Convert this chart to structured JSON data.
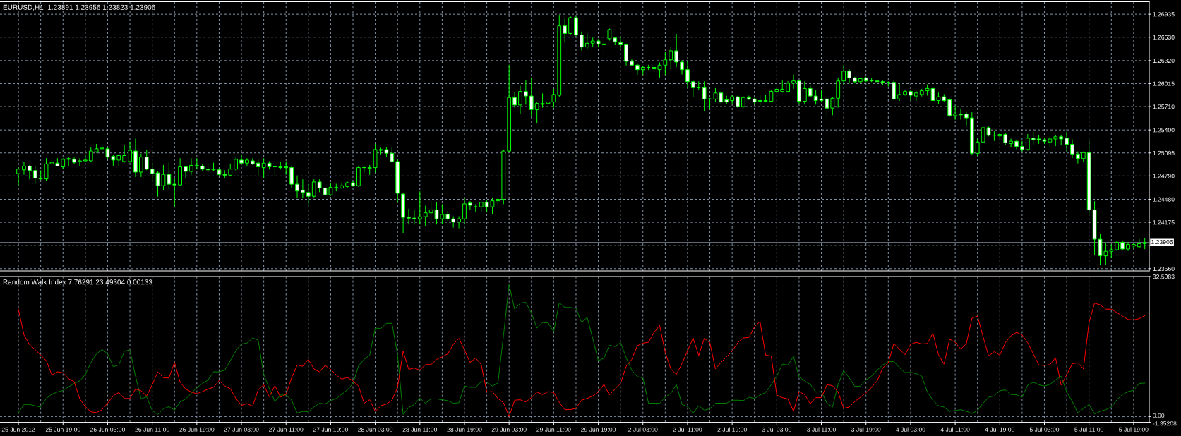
{
  "chart_data": [
    {
      "type": "candlestick",
      "title": "EURUSD,H1  1.23891 1.23956 1.23823 1.23906",
      "categories": [
        null,
        null,
        null,
        null,
        null,
        null,
        null,
        null,
        null,
        null,
        null,
        null,
        null,
        null,
        null,
        null,
        null,
        null,
        null,
        null,
        null,
        null,
        null,
        null,
        null,
        null,
        null,
        null,
        null,
        null,
        null,
        null,
        null,
        null,
        null,
        null,
        null,
        null,
        null,
        null,
        null,
        null,
        null,
        null,
        null,
        null,
        null,
        null,
        null,
        null,
        null,
        null,
        null,
        null,
        null,
        null,
        null,
        null,
        null,
        null,
        null,
        null,
        null,
        null,
        null,
        null,
        null,
        null,
        null,
        null,
        null,
        null,
        null,
        null,
        null,
        null,
        null,
        null,
        null,
        null,
        null,
        null,
        null,
        null,
        null,
        null,
        null,
        null,
        null,
        null,
        null,
        null,
        null,
        null,
        null,
        null,
        null,
        null,
        null,
        null,
        null,
        null,
        null,
        null,
        null,
        null,
        null,
        null,
        null,
        null,
        null,
        null,
        null,
        null,
        null,
        null,
        null,
        null,
        null,
        null,
        null,
        null,
        null,
        null,
        null,
        null,
        null,
        null,
        null,
        null,
        null,
        null,
        null,
        null,
        null,
        null,
        null,
        null,
        null,
        null,
        null,
        null,
        null,
        null,
        null,
        null,
        null,
        null,
        null,
        null,
        null,
        null,
        null,
        null,
        null,
        null,
        null,
        null,
        null,
        null,
        null,
        null,
        null,
        null,
        null,
        null,
        null,
        null,
        null,
        null,
        null,
        null,
        null,
        null,
        null,
        null,
        null,
        null,
        null,
        null,
        null,
        null,
        null,
        null,
        null,
        null,
        null,
        null,
        null,
        null,
        null,
        null,
        null,
        null,
        null,
        null,
        null,
        null,
        null,
        null,
        null,
        null,
        null
      ],
      "ohlc": [
        [
          1.2482,
          1.249,
          1.2467,
          1.2488
        ],
        [
          1.2487,
          1.2497,
          1.2481,
          1.2492
        ],
        [
          1.2492,
          1.2493,
          1.2475,
          1.2486
        ],
        [
          1.2486,
          1.2492,
          1.2469,
          1.2476
        ],
        [
          1.2476,
          1.2486,
          1.2474,
          1.2475
        ],
        [
          1.2475,
          1.2502,
          1.2473,
          1.2495
        ],
        [
          1.2495,
          1.2503,
          1.2492,
          1.2497
        ],
        [
          1.2496,
          1.2502,
          1.2492,
          1.2492
        ],
        [
          1.2491,
          1.2502,
          1.2489,
          1.2501
        ],
        [
          1.2501,
          1.2504,
          1.2492,
          1.2502
        ],
        [
          1.2501,
          1.2503,
          1.2495,
          1.2497
        ],
        [
          1.2498,
          1.2502,
          1.2493,
          1.2499
        ],
        [
          1.2499,
          1.2507,
          1.2498,
          1.25
        ],
        [
          1.2499,
          1.2517,
          1.2498,
          1.2512
        ],
        [
          1.2511,
          1.2521,
          1.251,
          1.2515
        ],
        [
          1.2515,
          1.2521,
          1.2512,
          1.2516
        ],
        [
          1.2515,
          1.2516,
          1.2502,
          1.2504
        ],
        [
          1.2505,
          1.2507,
          1.2493,
          1.25
        ],
        [
          1.25,
          1.2507,
          1.2492,
          1.2506
        ],
        [
          1.2498,
          1.252,
          1.2497,
          1.2506
        ],
        [
          1.2498,
          1.2524,
          1.2497,
          1.2513
        ],
        [
          1.2512,
          1.2528,
          1.2478,
          1.2484
        ],
        [
          1.2484,
          1.2508,
          1.2478,
          1.2504
        ],
        [
          1.2504,
          1.2513,
          1.2487,
          1.2488
        ],
        [
          1.2488,
          1.2497,
          1.2472,
          1.2482
        ],
        [
          1.2483,
          1.2485,
          1.2452,
          1.2466
        ],
        [
          1.2466,
          1.2493,
          1.2461,
          1.2481
        ],
        [
          1.2481,
          1.2497,
          1.2461,
          1.2468
        ],
        [
          1.2468,
          1.2476,
          1.2438,
          1.2467
        ],
        [
          1.2467,
          1.2502,
          1.2466,
          1.2491
        ],
        [
          1.2491,
          1.2492,
          1.2477,
          1.2485
        ],
        [
          1.2485,
          1.2502,
          1.2481,
          1.2493
        ],
        [
          1.2492,
          1.2502,
          1.2488,
          1.2493
        ],
        [
          1.2492,
          1.2494,
          1.2486,
          1.2488
        ],
        [
          1.2488,
          1.2494,
          1.2485,
          1.2487
        ],
        [
          1.2487,
          1.2496,
          1.2486,
          1.2488
        ],
        [
          1.2487,
          1.2488,
          1.248,
          1.2481
        ],
        [
          1.2481,
          1.2486,
          1.2476,
          1.248
        ],
        [
          1.248,
          1.2495,
          1.2479,
          1.2488
        ],
        [
          1.2488,
          1.2503,
          1.2486,
          1.2501
        ],
        [
          1.25,
          1.2507,
          1.2495,
          1.2496
        ],
        [
          1.2496,
          1.2502,
          1.2492,
          1.25
        ],
        [
          1.2499,
          1.2502,
          1.2494,
          1.2495
        ],
        [
          1.2496,
          1.25,
          1.2481,
          1.2491
        ],
        [
          1.249,
          1.2502,
          1.2477,
          1.2496
        ],
        [
          1.2496,
          1.2498,
          1.2488,
          1.2491
        ],
        [
          1.2491,
          1.2492,
          1.2478,
          1.2491
        ],
        [
          1.2491,
          1.2497,
          1.2488,
          1.249
        ],
        [
          1.2491,
          1.2498,
          1.2481,
          1.249
        ],
        [
          1.249,
          1.2492,
          1.2463,
          1.2468
        ],
        [
          1.2468,
          1.2479,
          1.245,
          1.2459
        ],
        [
          1.246,
          1.2474,
          1.245,
          1.2457
        ],
        [
          1.2457,
          1.2468,
          1.2442,
          1.2452
        ],
        [
          1.2452,
          1.2474,
          1.2451,
          1.2471
        ],
        [
          1.2471,
          1.2474,
          1.2458,
          1.2463
        ],
        [
          1.2463,
          1.2466,
          1.2453,
          1.2454
        ],
        [
          1.2454,
          1.2469,
          1.2453,
          1.2464
        ],
        [
          1.2463,
          1.2468,
          1.2459,
          1.2464
        ],
        [
          1.2463,
          1.247,
          1.2462,
          1.2466
        ],
        [
          1.2465,
          1.2471,
          1.2463,
          1.247
        ],
        [
          1.247,
          1.2472,
          1.2465,
          1.2466
        ],
        [
          1.2466,
          1.2492,
          1.2465,
          1.249
        ],
        [
          1.249,
          1.2492,
          1.2484,
          1.249
        ],
        [
          1.2489,
          1.2493,
          1.2481,
          1.249
        ],
        [
          1.249,
          1.2521,
          1.2484,
          1.2514
        ],
        [
          1.2513,
          1.2516,
          1.2508,
          1.2514
        ],
        [
          1.2514,
          1.2517,
          1.2505,
          1.2509
        ],
        [
          1.2509,
          1.2517,
          1.2497,
          1.2498
        ],
        [
          1.2498,
          1.2501,
          1.2445,
          1.2456
        ],
        [
          1.2455,
          1.2456,
          1.2404,
          1.2424
        ],
        [
          1.2424,
          1.2435,
          1.2415,
          1.2423
        ],
        [
          1.2423,
          1.2433,
          1.2415,
          1.2422
        ],
        [
          1.2422,
          1.2458,
          1.2415,
          1.2425
        ],
        [
          1.2425,
          1.2439,
          1.2413,
          1.243
        ],
        [
          1.243,
          1.2445,
          1.242,
          1.2434
        ],
        [
          1.2434,
          1.2444,
          1.2415,
          1.2422
        ],
        [
          1.2422,
          1.2441,
          1.2416,
          1.2428
        ],
        [
          1.2428,
          1.2432,
          1.242,
          1.2422
        ],
        [
          1.2422,
          1.2425,
          1.2411,
          1.2418
        ],
        [
          1.2418,
          1.2425,
          1.241,
          1.2422
        ],
        [
          1.2422,
          1.245,
          1.2415,
          1.2442
        ],
        [
          1.2443,
          1.2445,
          1.2434,
          1.244
        ],
        [
          1.2438,
          1.2441,
          1.2432,
          1.2438
        ],
        [
          1.2438,
          1.2445,
          1.2432,
          1.2444
        ],
        [
          1.2444,
          1.2446,
          1.2431,
          1.2438
        ],
        [
          1.2438,
          1.2449,
          1.2429,
          1.2446
        ],
        [
          1.2446,
          1.245,
          1.244,
          1.2448
        ],
        [
          1.2448,
          1.2513,
          1.2442,
          1.2512
        ],
        [
          1.2512,
          1.2626,
          1.2511,
          1.2583
        ],
        [
          1.2583,
          1.259,
          1.257,
          1.2573
        ],
        [
          1.2573,
          1.2598,
          1.2562,
          1.2591
        ],
        [
          1.2591,
          1.2606,
          1.2574,
          1.2585
        ],
        [
          1.2585,
          1.2609,
          1.2558,
          1.2567
        ],
        [
          1.2567,
          1.2576,
          1.2549,
          1.2575
        ],
        [
          1.2574,
          1.2588,
          1.257,
          1.2575
        ],
        [
          1.2575,
          1.2587,
          1.2564,
          1.2577
        ],
        [
          1.2577,
          1.2594,
          1.257,
          1.2587
        ],
        [
          1.2586,
          1.2692,
          1.2584,
          1.2678
        ],
        [
          1.2678,
          1.2687,
          1.2656,
          1.2668
        ],
        [
          1.2668,
          1.2691,
          1.2666,
          1.2689
        ],
        [
          1.2689,
          1.269,
          1.2665,
          1.2666
        ],
        [
          1.2666,
          1.267,
          1.2646,
          1.265
        ],
        [
          1.265,
          1.2667,
          1.2647,
          1.2655
        ],
        [
          1.2655,
          1.2662,
          1.265,
          1.2658
        ],
        [
          1.2658,
          1.266,
          1.265,
          1.2654
        ],
        [
          1.2653,
          1.2658,
          1.2639,
          1.2654
        ],
        [
          1.2661,
          1.2674,
          1.2659,
          1.2673
        ],
        [
          1.2662,
          1.2663,
          1.2653,
          1.2657
        ],
        [
          1.2656,
          1.2664,
          1.2647,
          1.2653
        ],
        [
          1.2653,
          1.2654,
          1.2626,
          1.2631
        ],
        [
          1.2631,
          1.2633,
          1.2625,
          1.2626
        ],
        [
          1.2626,
          1.2627,
          1.2613,
          1.262
        ],
        [
          1.262,
          1.2624,
          1.2613,
          1.2623
        ],
        [
          1.2623,
          1.2626,
          1.262,
          1.2623
        ],
        [
          1.2623,
          1.2626,
          1.2615,
          1.2621
        ],
        [
          1.262,
          1.2629,
          1.261,
          1.2626
        ],
        [
          1.2626,
          1.2643,
          1.2613,
          1.2633
        ],
        [
          1.2633,
          1.2649,
          1.2621,
          1.2645
        ],
        [
          1.2645,
          1.2667,
          1.2624,
          1.263
        ],
        [
          1.263,
          1.2632,
          1.2614,
          1.262
        ],
        [
          1.262,
          1.2631,
          1.2596,
          1.2604
        ],
        [
          1.2604,
          1.2605,
          1.2584,
          1.2596
        ],
        [
          1.2596,
          1.2604,
          1.2593,
          1.2596
        ],
        [
          1.2596,
          1.2604,
          1.2565,
          1.2581
        ],
        [
          1.2581,
          1.2582,
          1.2568,
          1.2581
        ],
        [
          1.2581,
          1.2595,
          1.2578,
          1.2589
        ],
        [
          1.2589,
          1.2591,
          1.2574,
          1.2577
        ],
        [
          1.258,
          1.2585,
          1.2575,
          1.2577
        ],
        [
          1.2579,
          1.2586,
          1.2574,
          1.2584
        ],
        [
          1.2584,
          1.2585,
          1.257,
          1.2571
        ],
        [
          1.2571,
          1.2584,
          1.257,
          1.2583
        ],
        [
          1.2583,
          1.2585,
          1.258,
          1.2581
        ],
        [
          1.2581,
          1.2582,
          1.2574,
          1.2577
        ],
        [
          1.2578,
          1.2585,
          1.2573,
          1.2579
        ],
        [
          1.2578,
          1.2586,
          1.2577,
          1.2579
        ],
        [
          1.2578,
          1.2592,
          1.2577,
          1.2591
        ],
        [
          1.2591,
          1.2595,
          1.259,
          1.2594
        ],
        [
          1.2591,
          1.2605,
          1.259,
          1.2594
        ],
        [
          1.2591,
          1.2604,
          1.259,
          1.2602
        ],
        [
          1.2602,
          1.2613,
          1.2595,
          1.2605
        ],
        [
          1.2605,
          1.2606,
          1.2575,
          1.2578
        ],
        [
          1.2578,
          1.2604,
          1.2574,
          1.2595
        ],
        [
          1.2595,
          1.2599,
          1.2584,
          1.2585
        ],
        [
          1.2585,
          1.2592,
          1.2574,
          1.2579
        ],
        [
          1.2581,
          1.2592,
          1.2577,
          1.2579
        ],
        [
          1.2581,
          1.2583,
          1.2557,
          1.2569
        ],
        [
          1.2569,
          1.2583,
          1.256,
          1.2582
        ],
        [
          1.2582,
          1.2609,
          1.257,
          1.2605
        ],
        [
          1.2605,
          1.2626,
          1.26,
          1.2618
        ],
        [
          1.2618,
          1.262,
          1.2603,
          1.2609
        ],
        [
          1.2609,
          1.261,
          1.2602,
          1.2604
        ],
        [
          1.2604,
          1.2609,
          1.2603,
          1.2608
        ],
        [
          1.2609,
          1.261,
          1.2604,
          1.2605
        ],
        [
          1.2606,
          1.2608,
          1.2604,
          1.2605
        ],
        [
          1.2605,
          1.2606,
          1.2603,
          1.2604
        ],
        [
          1.2604,
          1.2605,
          1.26,
          1.2603
        ],
        [
          1.2603,
          1.2604,
          1.2598,
          1.2603
        ],
        [
          1.2603,
          1.2606,
          1.258,
          1.2581
        ],
        [
          1.2581,
          1.2601,
          1.2579,
          1.2587
        ],
        [
          1.2587,
          1.2593,
          1.2586,
          1.2591
        ],
        [
          1.2591,
          1.2592,
          1.258,
          1.2586
        ],
        [
          1.2585,
          1.2591,
          1.2579,
          1.2589
        ],
        [
          1.2587,
          1.2594,
          1.2585,
          1.2592
        ],
        [
          1.2592,
          1.26,
          1.2586,
          1.2595
        ],
        [
          1.2595,
          1.2596,
          1.2573,
          1.2579
        ],
        [
          1.2579,
          1.2589,
          1.2575,
          1.2584
        ],
        [
          1.2584,
          1.2587,
          1.2578,
          1.2579
        ],
        [
          1.258,
          1.2581,
          1.2558,
          1.2559
        ],
        [
          1.2559,
          1.2572,
          1.2554,
          1.2561
        ],
        [
          1.2561,
          1.2568,
          1.2554,
          1.256
        ],
        [
          1.2561,
          1.2563,
          1.2546,
          1.2556
        ],
        [
          1.2556,
          1.2563,
          1.2507,
          1.2509
        ],
        [
          1.2509,
          1.2528,
          1.2506,
          1.2524
        ],
        [
          1.2524,
          1.2544,
          1.2523,
          1.2543
        ],
        [
          1.2543,
          1.2544,
          1.2532,
          1.2533
        ],
        [
          1.2533,
          1.2538,
          1.2526,
          1.2533
        ],
        [
          1.2532,
          1.2536,
          1.253,
          1.2534
        ],
        [
          1.2534,
          1.2536,
          1.2521,
          1.2523
        ],
        [
          1.2522,
          1.2528,
          1.2518,
          1.2525
        ],
        [
          1.2525,
          1.2526,
          1.2515,
          1.2518
        ],
        [
          1.2518,
          1.2525,
          1.2512,
          1.2514
        ],
        [
          1.2514,
          1.2534,
          1.2513,
          1.2529
        ],
        [
          1.2529,
          1.2537,
          1.252,
          1.2527
        ],
        [
          1.2528,
          1.2533,
          1.2522,
          1.2527
        ],
        [
          1.2527,
          1.2529,
          1.2522,
          1.2525
        ],
        [
          1.2524,
          1.2531,
          1.2518,
          1.2528
        ],
        [
          1.2528,
          1.2533,
          1.2519,
          1.2531
        ],
        [
          1.2531,
          1.2533,
          1.2521,
          1.2528
        ],
        [
          1.2529,
          1.2537,
          1.2512,
          1.2521
        ],
        [
          1.2521,
          1.2527,
          1.2503,
          1.2508
        ],
        [
          1.2508,
          1.2511,
          1.2496,
          1.2502
        ],
        [
          1.2502,
          1.2511,
          1.2498,
          1.251
        ],
        [
          1.251,
          1.2526,
          1.2429,
          1.2434
        ],
        [
          1.2434,
          1.2445,
          1.2374,
          1.2395
        ],
        [
          1.2395,
          1.2402,
          1.2361,
          1.2373
        ],
        [
          1.2373,
          1.239,
          1.2362,
          1.2379
        ],
        [
          1.2379,
          1.2388,
          1.2371,
          1.2381
        ],
        [
          1.2381,
          1.2392,
          1.238,
          1.2391
        ],
        [
          1.2391,
          1.2393,
          1.2381,
          1.2382
        ],
        [
          1.2382,
          1.2391,
          1.238,
          1.2388
        ],
        [
          1.2386,
          1.239,
          1.2383,
          1.2388
        ],
        [
          1.2385,
          1.2395,
          1.2384,
          1.2389
        ],
        [
          1.23891,
          1.23956,
          1.23823,
          1.23906
        ]
      ],
      "ylim": [
        1.2353,
        1.271
      ],
      "yticks": [
        1.26935,
        {
          "value": 1.2663,
          "label": "1.26630"
        },
        {
          "value": 1.2632,
          "label": "1.26320"
        },
        1.26015,
        {
          "value": 1.2571,
          "label": "1.25710"
        },
        {
          "value": 1.254,
          "label": "1.25400"
        },
        1.25095,
        {
          "value": 1.2479,
          "label": "1.24790"
        },
        {
          "value": 1.2448,
          "label": "1.24480"
        },
        1.24175,
        {
          "value": 1.23865,
          "label": null
        },
        {
          "value": 1.2356,
          "label": "1.23560"
        }
      ],
      "grid": true,
      "tick_labels": "y",
      "ref_lines": [
        {
          "axis": "y",
          "value": 1.23906,
          "label": "1.23906",
          "color": "#8c9aa8"
        }
      ]
    },
    {
      "type": "line",
      "title": "Random Walk Index 7.76291 23.49304 0.00133",
      "categories": [
        "25 Jun 2012",
        null,
        null,
        null,
        null,
        null,
        null,
        null,
        "25 Jun 19:00",
        null,
        null,
        null,
        null,
        null,
        null,
        null,
        "26 Jun 03:00",
        null,
        null,
        null,
        null,
        null,
        null,
        null,
        "26 Jun 11:00",
        null,
        null,
        null,
        null,
        null,
        null,
        null,
        "26 Jun 19:00",
        null,
        null,
        null,
        null,
        null,
        null,
        null,
        "27 Jun 03:00",
        null,
        null,
        null,
        null,
        null,
        null,
        null,
        "27 Jun 11:00",
        null,
        null,
        null,
        null,
        null,
        null,
        null,
        "27 Jun 19:00",
        null,
        null,
        null,
        null,
        null,
        null,
        null,
        "28 Jun 03:00",
        null,
        null,
        null,
        null,
        null,
        null,
        null,
        "28 Jun 11:00",
        null,
        null,
        null,
        null,
        null,
        null,
        null,
        "28 Jun 19:00",
        null,
        null,
        null,
        null,
        null,
        null,
        null,
        "29 Jun 03:00",
        null,
        null,
        null,
        null,
        null,
        null,
        null,
        "29 Jun 11:00",
        null,
        null,
        null,
        null,
        null,
        null,
        null,
        "29 Jun 19:00",
        null,
        null,
        null,
        null,
        null,
        null,
        null,
        "2 Jul 03:00",
        null,
        null,
        null,
        null,
        null,
        null,
        null,
        "2 Jul 11:00",
        null,
        null,
        null,
        null,
        null,
        null,
        null,
        "2 Jul 19:00",
        null,
        null,
        null,
        null,
        null,
        null,
        null,
        "3 Jul 03:00",
        null,
        null,
        null,
        null,
        null,
        null,
        null,
        "3 Jul 11:00",
        null,
        null,
        null,
        null,
        null,
        null,
        null,
        "3 Jul 19:00",
        null,
        null,
        null,
        null,
        null,
        null,
        null,
        "4 Jul 03:00",
        null,
        null,
        null,
        null,
        null,
        null,
        null,
        "4 Jul 11:00",
        null,
        null,
        null,
        null,
        null,
        null,
        null,
        "4 Jul 19:00",
        null,
        null,
        null,
        null,
        null,
        null,
        null,
        "5 Jul 03:00",
        null,
        null,
        null,
        null,
        null,
        null,
        null,
        "5 Jul 11:00",
        null,
        null,
        null,
        null,
        null,
        null,
        null,
        "5 Jul 19:00",
        null,
        null
      ],
      "series": [
        {
          "color": "#008000",
          "values": [
            0.9,
            2.8,
            2.8,
            2.5,
            2.2,
            4.2,
            5.2,
            5.7,
            6.1,
            6.9,
            7.7,
            8.3,
            9.8,
            12.6,
            14.6,
            15.6,
            14.6,
            11.6,
            12.0,
            15.2,
            15.5,
            9.4,
            4.1,
            4.6,
            1.4,
            0.5,
            1.8,
            2.3,
            1.5,
            3.4,
            4.1,
            5.4,
            6.7,
            7.7,
            8.5,
            10.4,
            10.4,
            10.8,
            13.0,
            15.3,
            16.9,
            17.1,
            18.3,
            17.8,
            9.8,
            6.5,
            3.5,
            5.0,
            5.0,
            3.8,
            0.8,
            1.2,
            1.1,
            2.2,
            3.1,
            2.9,
            3.7,
            4.2,
            5.2,
            6.2,
            7.7,
            11.8,
            13.3,
            14.3,
            20.6,
            20.5,
            21.7,
            21.7,
            14.3,
            0.5,
            2.1,
            2.8,
            4.3,
            3.1,
            4.1,
            4.1,
            3.9,
            3.7,
            3.1,
            3.2,
            7.1,
            6.8,
            6.8,
            8.1,
            8.0,
            7.1,
            7.8,
            18.9,
            30.7,
            25.0,
            26.4,
            26.6,
            24.1,
            20.6,
            21.9,
            21.8,
            19.8,
            26.5,
            25.4,
            25.4,
            25.2,
            21.9,
            23.1,
            18.2,
            13.0,
            13.6,
            16.6,
            16.3,
            17.2,
            13.7,
            10.8,
            9.3,
            9.0,
            3.1,
            3.1,
            3.1,
            4.5,
            5.4,
            7.4,
            2.8,
            2.3,
            0.8,
            2.5,
            1.5,
            1.8,
            3.1,
            3.1,
            3.1,
            3.8,
            3.8,
            3.7,
            4.5,
            4.2,
            5.0,
            5.6,
            7.4,
            9.4,
            12.2,
            12.0,
            14.0,
            9.2,
            8.3,
            7.5,
            5.7,
            5.8,
            3.1,
            2.2,
            7.5,
            10.7,
            9.0,
            7.0,
            7.1,
            8.5,
            9.4,
            10.8,
            12.0,
            12.8,
            12.8,
            11.4,
            10.2,
            10.3,
            10.0,
            9.4,
            5.7,
            3.8,
            2.5,
            2.2,
            1.2,
            1.4,
            1.6,
            1.2,
            0.7,
            1.4,
            3.1,
            4.5,
            4.8,
            6.0,
            6.2,
            5.1,
            5.1,
            4.5,
            7.3,
            8.0,
            7.4,
            7.1,
            7.5,
            8.5,
            9.4,
            5.7,
            3.5,
            0.8,
            1.9,
            2.8,
            0.6,
            1.2,
            1.6,
            2.2,
            3.9,
            5.1,
            5.8,
            6.1,
            7.7,
            7.8
          ]
        },
        {
          "color": "#ff0000",
          "values": [
            25.0,
            19.0,
            16.7,
            15.6,
            14.3,
            13.0,
            9.7,
            10.4,
            10.2,
            8.8,
            8.1,
            4.1,
            2.3,
            1.1,
            0.9,
            1.6,
            3.1,
            4.8,
            5.6,
            4.2,
            4.2,
            6.4,
            6.0,
            4.8,
            7.4,
            10.4,
            9.0,
            9.0,
            12.6,
            8.0,
            6.4,
            5.7,
            5.3,
            5.8,
            6.4,
            6.8,
            8.4,
            7.1,
            6.5,
            4.2,
            2.6,
            3.0,
            2.4,
            6.2,
            7.4,
            4.6,
            7.2,
            4.5,
            5.2,
            9.0,
            12.0,
            11.7,
            13.3,
            11.1,
            10.4,
            11.9,
            11.0,
            9.7,
            8.7,
            9.1,
            8.3,
            7.1,
            3.1,
            3.9,
            1.2,
            2.5,
            2.9,
            3.8,
            6.8,
            15.2,
            11.0,
            11.3,
            10.8,
            12.1,
            12.1,
            13.3,
            13.9,
            14.6,
            16.8,
            18.2,
            15.5,
            12.6,
            13.6,
            12.1,
            5.7,
            5.8,
            4.2,
            3.2,
            0.0,
            3.8,
            3.9,
            3.4,
            4.4,
            5.7,
            5.1,
            5.8,
            5.6,
            3.3,
            1.6,
            1.6,
            1.9,
            3.8,
            4.2,
            4.8,
            5.7,
            7.5,
            5.0,
            6.4,
            7.7,
            11.7,
            13.3,
            16.5,
            17.1,
            17.3,
            19.6,
            21.2,
            14.9,
            11.1,
            9.8,
            12.3,
            15.3,
            18.3,
            14.2,
            18.2,
            17.2,
            11.1,
            12.6,
            13.9,
            15.2,
            17.2,
            18.3,
            18.4,
            20.9,
            22.1,
            14.3,
            14.1,
            5.0,
            4.4,
            4.1,
            1.2,
            5.8,
            5.1,
            3.0,
            4.4,
            4.4,
            7.4,
            7.2,
            5.7,
            1.9,
            2.2,
            3.5,
            4.5,
            5.5,
            6.8,
            8.3,
            11.3,
            12.5,
            17.0,
            15.7,
            14.4,
            16.8,
            17.3,
            16.9,
            17.0,
            19.4,
            14.4,
            12.2,
            18.0,
            17.3,
            15.7,
            17.0,
            22.9,
            23.4,
            18.6,
            14.1,
            15.1,
            14.3,
            17.2,
            18.8,
            19.6,
            19.0,
            17.2,
            14.6,
            12.0,
            11.9,
            12.1,
            13.7,
            7.3,
            9.7,
            12.3,
            12.5,
            11.1,
            21.9,
            26.4,
            26.0,
            25.0,
            25.0,
            24.2,
            23.4,
            22.6,
            22.5,
            22.8,
            23.5
          ]
        }
      ],
      "ylim": [
        -1.35208,
        32.5983
      ],
      "yticks": [
        32.5983,
        {
          "value": 0,
          "label": "0.00"
        },
        -1.35208
      ],
      "grid": true
    }
  ]
}
